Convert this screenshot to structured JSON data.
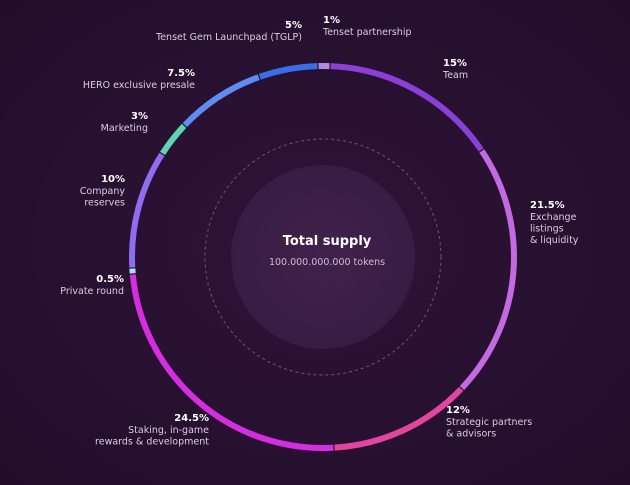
{
  "chart_data": {
    "type": "pie",
    "center": {
      "title": "Total supply",
      "subtitle": "100.000.000.000 tokens"
    },
    "slices": [
      {
        "label": "Tenset partnership",
        "percent_label": "1%",
        "value": 1,
        "color": "#b08ae0"
      },
      {
        "label": "Team",
        "percent_label": "15%",
        "value": 15,
        "color": "#8a3fd6"
      },
      {
        "label": "Exchange listings & liquidity",
        "percent_label": "21.5%",
        "value": 21.5,
        "color": "#c46ae0"
      },
      {
        "label": "Strategic partners & advisors",
        "percent_label": "12%",
        "value": 12,
        "color": "#e0459f"
      },
      {
        "label": "Staking, in-game rewards & development",
        "percent_label": "24.5%",
        "value": 24.5,
        "color": "#d42ee0"
      },
      {
        "label": "Private round",
        "percent_label": "0.5%",
        "value": 0.5,
        "color": "#9fe8f0"
      },
      {
        "label": "Company reserves",
        "percent_label": "10%",
        "value": 10,
        "color": "#8f6df0"
      },
      {
        "label": "Marketing",
        "percent_label": "3%",
        "value": 3,
        "color": "#5ed6b4"
      },
      {
        "label": "HERO exclusive presale",
        "percent_label": "7.5%",
        "value": 7.5,
        "color": "#5f8cf0"
      },
      {
        "label": "Tenset Gem Launchpad (TGLP)",
        "percent_label": "5%",
        "value": 5,
        "color": "#3b6de6"
      }
    ]
  }
}
